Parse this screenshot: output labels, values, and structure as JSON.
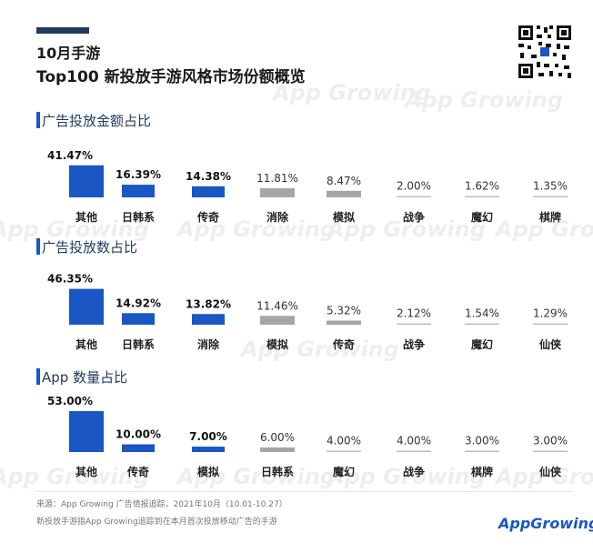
{
  "title_line1": "10月手游",
  "title_line2": "Top100 新投放手游风格市场份额概览",
  "watermark": "App Growing",
  "colors": {
    "highlight": "#1a56c4",
    "muted": "#a6a6a6",
    "line": "#bfbfbf"
  },
  "chart_data": [
    {
      "type": "bar",
      "title": "广告投放金额占比",
      "categories": [
        "其他",
        "日韩系",
        "传奇",
        "消除",
        "模拟",
        "战争",
        "魔幻",
        "棋牌"
      ],
      "value_labels": [
        "41.47%",
        "16.39%",
        "14.38%",
        "11.81%",
        "8.47%",
        "2.00%",
        "1.62%",
        "1.35%"
      ],
      "values": [
        41.47,
        16.39,
        14.38,
        11.81,
        8.47,
        2.0,
        1.62,
        1.35
      ],
      "highlight_count": 3,
      "unit": "%"
    },
    {
      "type": "bar",
      "title": "广告投放数占比",
      "categories": [
        "其他",
        "日韩系",
        "消除",
        "模拟",
        "传奇",
        "战争",
        "魔幻",
        "仙侠"
      ],
      "value_labels": [
        "46.35%",
        "14.92%",
        "13.82%",
        "11.46%",
        "5.32%",
        "2.12%",
        "1.54%",
        "1.29%"
      ],
      "values": [
        46.35,
        14.92,
        13.82,
        11.46,
        5.32,
        2.12,
        1.54,
        1.29
      ],
      "highlight_count": 3,
      "unit": "%"
    },
    {
      "type": "bar",
      "title": "App 数量占比",
      "categories": [
        "其他",
        "传奇",
        "模拟",
        "日韩系",
        "魔幻",
        "战争",
        "棋牌",
        "仙侠"
      ],
      "value_labels": [
        "53.00%",
        "10.00%",
        "7.00%",
        "6.00%",
        "4.00%",
        "4.00%",
        "3.00%",
        "3.00%"
      ],
      "values": [
        53.0,
        10.0,
        7.0,
        6.0,
        4.0,
        4.0,
        3.0,
        3.0
      ],
      "highlight_count": 3,
      "unit": "%"
    }
  ],
  "footer": {
    "source": "来源：App Growing 广告情报追踪，2021年10月（10.01-10.27）",
    "note": "新投放手游指App Growing追踪到在本月首次投放移动广告的手游",
    "logo": "AppGrowing"
  }
}
